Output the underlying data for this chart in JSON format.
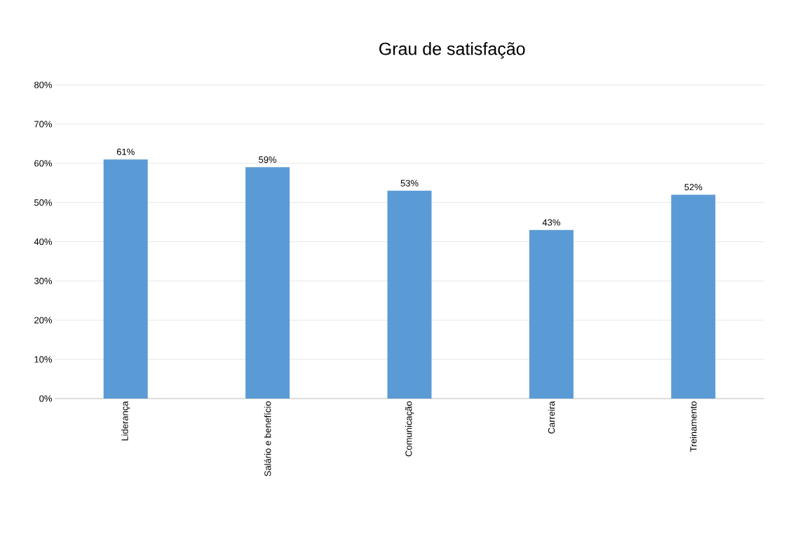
{
  "chart_data": {
    "type": "bar",
    "title": "Grau de satisfação",
    "categories": [
      "Liderança",
      "Salário e benefício",
      "Comunicação",
      "Carreira",
      "Treinamento"
    ],
    "values": [
      61,
      59,
      53,
      43,
      52
    ],
    "value_labels": [
      "61%",
      "59%",
      "53%",
      "43%",
      "52%"
    ],
    "color": "#5b9bd5",
    "ylim": [
      0,
      80
    ],
    "yticks": [
      {
        "value": 0,
        "label": "0%"
      },
      {
        "value": 10,
        "label": "10%"
      },
      {
        "value": 20,
        "label": "20%"
      },
      {
        "value": 30,
        "label": "30%"
      },
      {
        "value": 40,
        "label": "40%"
      },
      {
        "value": 50,
        "label": "50%"
      },
      {
        "value": 60,
        "label": "60%"
      },
      {
        "value": 70,
        "label": "70%"
      },
      {
        "value": 80,
        "label": "80%"
      }
    ],
    "grid": "y"
  }
}
